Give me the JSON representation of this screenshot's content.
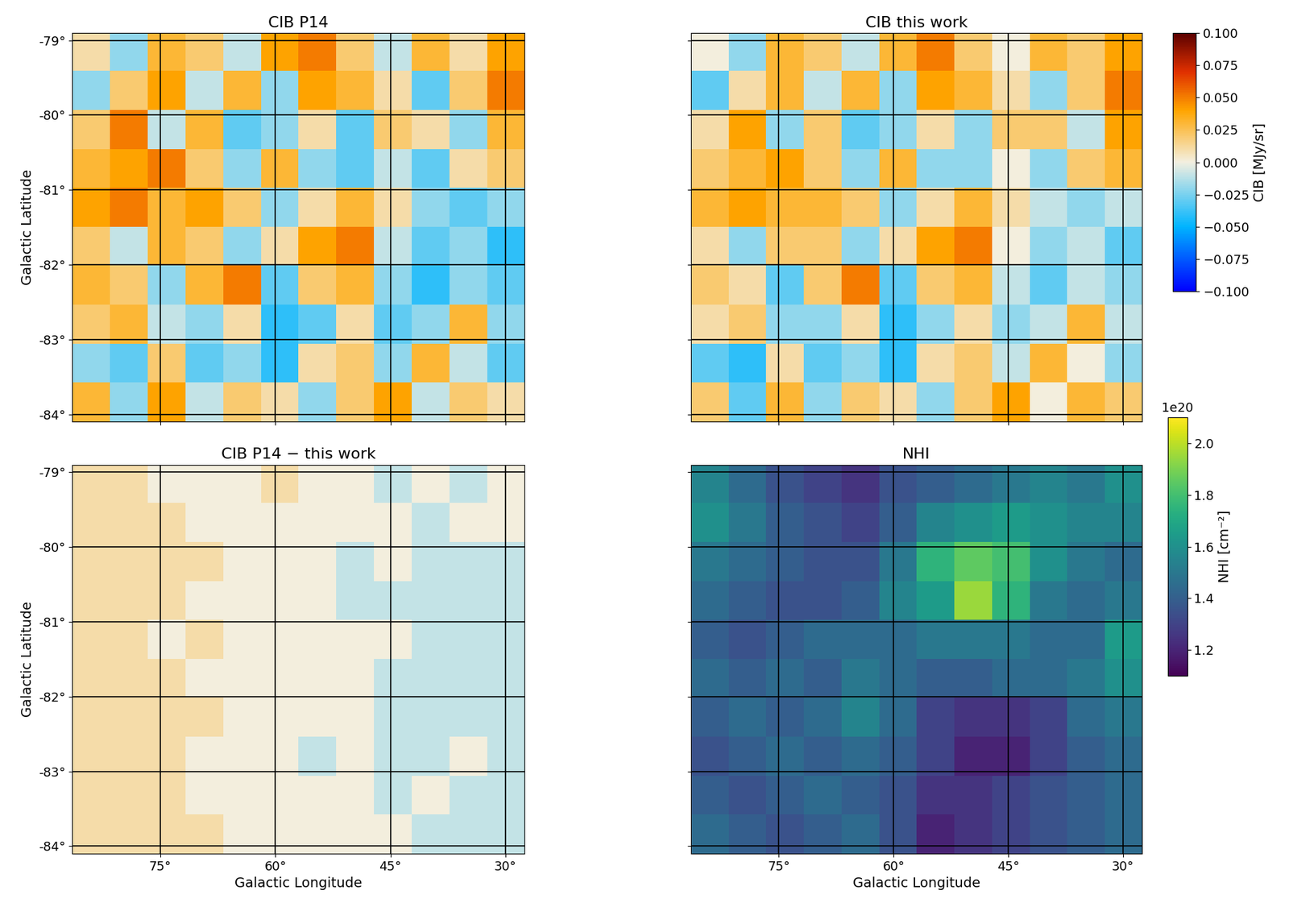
{
  "chart_data": [
    {
      "type": "heatmap",
      "title": "CIB P14",
      "ylabel": "Galactic Latitude",
      "tick_labels": "y",
      "grid": true,
      "xlim": [
        86.5,
        27.5
      ],
      "ylim": [
        -84.1,
        -78.9
      ],
      "xticks": [
        {
          "value": 75,
          "label": "75°"
        },
        {
          "value": 60,
          "label": "60°"
        },
        {
          "value": 45,
          "label": "45°"
        },
        {
          "value": 30,
          "label": "30°"
        }
      ],
      "yticks": [
        {
          "value": -84,
          "label": "-84°"
        },
        {
          "value": -83,
          "label": "-83°"
        },
        {
          "value": -82,
          "label": "-82°"
        },
        {
          "value": -81,
          "label": "-81°"
        },
        {
          "value": -80,
          "label": "-80°"
        },
        {
          "value": -79,
          "label": "-79°"
        }
      ],
      "color_range": [
        -0.1,
        0.1
      ],
      "cells": [
        [
          0.01,
          -0.02,
          0.03,
          0.02,
          -0.01,
          0.04,
          0.05,
          0.02,
          -0.01,
          0.03,
          0.01,
          0.04
        ],
        [
          -0.02,
          0.02,
          0.04,
          -0.01,
          0.03,
          -0.02,
          0.04,
          0.03,
          0.01,
          -0.03,
          0.02,
          0.05
        ],
        [
          0.02,
          0.05,
          -0.01,
          0.03,
          -0.03,
          -0.02,
          0.01,
          -0.03,
          0.02,
          0.01,
          -0.02,
          0.03
        ],
        [
          0.03,
          0.04,
          0.05,
          0.02,
          -0.02,
          0.03,
          -0.02,
          -0.03,
          -0.01,
          -0.03,
          0.01,
          0.02
        ],
        [
          0.04,
          0.05,
          0.03,
          0.04,
          0.02,
          -0.02,
          0.01,
          0.03,
          0.01,
          -0.02,
          -0.03,
          -0.02
        ],
        [
          0.02,
          -0.01,
          0.03,
          0.02,
          -0.02,
          0.01,
          0.04,
          0.05,
          -0.01,
          -0.03,
          -0.02,
          -0.04
        ],
        [
          0.03,
          0.02,
          -0.02,
          0.03,
          0.05,
          -0.03,
          0.02,
          0.03,
          -0.02,
          -0.04,
          -0.02,
          -0.03
        ],
        [
          0.02,
          0.03,
          -0.01,
          -0.02,
          0.01,
          -0.04,
          -0.03,
          0.01,
          -0.03,
          -0.02,
          0.03,
          -0.02
        ],
        [
          -0.02,
          -0.03,
          0.02,
          -0.03,
          -0.02,
          -0.04,
          0.01,
          0.02,
          -0.02,
          0.03,
          -0.01,
          -0.03
        ],
        [
          0.03,
          -0.02,
          0.04,
          -0.01,
          0.02,
          0.01,
          -0.02,
          0.02,
          0.04,
          -0.01,
          0.02,
          0.01
        ]
      ]
    },
    {
      "type": "heatmap",
      "title": "CIB this work",
      "tick_labels": false,
      "grid": true,
      "xlim": [
        86.5,
        27.5
      ],
      "ylim": [
        -84.1,
        -78.9
      ],
      "xticks": [
        {
          "value": 75,
          "label": "75°"
        },
        {
          "value": 60,
          "label": "60°"
        },
        {
          "value": 45,
          "label": "45°"
        },
        {
          "value": 30,
          "label": "30°"
        }
      ],
      "yticks": [
        {
          "value": -84,
          "label": "-84°"
        },
        {
          "value": -83,
          "label": "-83°"
        },
        {
          "value": -82,
          "label": "-82°"
        },
        {
          "value": -81,
          "label": "-81°"
        },
        {
          "value": -80,
          "label": "-80°"
        },
        {
          "value": -79,
          "label": "-79°"
        }
      ],
      "color_range": [
        -0.1,
        0.1
      ],
      "colorbar": {
        "label": "CIB [MJy/sr]",
        "range": [
          -0.1,
          0.1
        ],
        "ticks": [
          {
            "value": -0.1,
            "label": "−0.100"
          },
          {
            "value": -0.075,
            "label": "−0.075"
          },
          {
            "value": -0.05,
            "label": "−0.050"
          },
          {
            "value": -0.025,
            "label": "−0.025"
          },
          {
            "value": 0.0,
            "label": "0.000"
          },
          {
            "value": 0.025,
            "label": "0.025"
          },
          {
            "value": 0.05,
            "label": "0.050"
          },
          {
            "value": 0.075,
            "label": "0.075"
          },
          {
            "value": 0.1,
            "label": "0.100"
          }
        ]
      },
      "cells": [
        [
          0.0,
          -0.02,
          0.03,
          0.02,
          -0.01,
          0.03,
          0.05,
          0.02,
          0.0,
          0.03,
          0.02,
          0.04
        ],
        [
          -0.03,
          0.01,
          0.03,
          -0.01,
          0.03,
          -0.02,
          0.04,
          0.03,
          0.01,
          -0.02,
          0.02,
          0.05
        ],
        [
          0.01,
          0.04,
          -0.02,
          0.02,
          -0.03,
          -0.02,
          0.01,
          -0.02,
          0.02,
          0.02,
          -0.01,
          0.04
        ],
        [
          0.02,
          0.03,
          0.04,
          0.02,
          -0.02,
          0.03,
          -0.02,
          -0.02,
          0.0,
          -0.02,
          0.02,
          0.03
        ],
        [
          0.03,
          0.04,
          0.03,
          0.03,
          0.02,
          -0.02,
          0.01,
          0.03,
          0.01,
          -0.01,
          -0.02,
          -0.01
        ],
        [
          0.01,
          -0.02,
          0.02,
          0.02,
          -0.02,
          0.01,
          0.04,
          0.05,
          0.0,
          -0.02,
          -0.01,
          -0.03
        ],
        [
          0.02,
          0.01,
          -0.03,
          0.02,
          0.05,
          -0.03,
          0.02,
          0.03,
          -0.01,
          -0.03,
          -0.01,
          -0.02
        ],
        [
          0.01,
          0.02,
          -0.02,
          -0.02,
          0.01,
          -0.04,
          -0.02,
          0.01,
          -0.02,
          -0.01,
          0.03,
          -0.01
        ],
        [
          -0.03,
          -0.04,
          0.01,
          -0.03,
          -0.02,
          -0.04,
          0.01,
          0.02,
          -0.01,
          0.03,
          0.0,
          -0.02
        ],
        [
          0.02,
          -0.03,
          0.03,
          -0.02,
          0.02,
          0.01,
          -0.02,
          0.02,
          0.04,
          0.0,
          0.03,
          0.02
        ]
      ]
    },
    {
      "type": "heatmap",
      "title": "CIB P14 − this work",
      "xlabel": "Galactic Longitude",
      "ylabel": "Galactic Latitude",
      "grid": true,
      "xlim": [
        86.5,
        27.5
      ],
      "ylim": [
        -84.1,
        -78.9
      ],
      "xticks": [
        {
          "value": 75,
          "label": "75°"
        },
        {
          "value": 60,
          "label": "60°"
        },
        {
          "value": 45,
          "label": "45°"
        },
        {
          "value": 30,
          "label": "30°"
        }
      ],
      "yticks": [
        {
          "value": -84,
          "label": "-84°"
        },
        {
          "value": -83,
          "label": "-83°"
        },
        {
          "value": -82,
          "label": "-82°"
        },
        {
          "value": -81,
          "label": "-81°"
        },
        {
          "value": -80,
          "label": "-80°"
        },
        {
          "value": -79,
          "label": "-79°"
        }
      ],
      "color_range": [
        -0.1,
        0.1
      ],
      "cells": [
        [
          0.01,
          0.01,
          0.0,
          0.0,
          0.0,
          0.01,
          0.0,
          0.0,
          -0.01,
          0.0,
          -0.01,
          0.0
        ],
        [
          0.01,
          0.01,
          0.01,
          0.0,
          0.0,
          0.0,
          0.0,
          0.0,
          0.0,
          -0.01,
          0.0,
          0.0
        ],
        [
          0.01,
          0.01,
          0.01,
          0.01,
          0.0,
          0.0,
          0.0,
          -0.01,
          0.0,
          -0.01,
          -0.01,
          -0.01
        ],
        [
          0.01,
          0.01,
          0.01,
          0.0,
          0.0,
          0.0,
          0.0,
          -0.01,
          -0.01,
          -0.01,
          -0.01,
          -0.01
        ],
        [
          0.01,
          0.01,
          0.0,
          0.01,
          0.0,
          0.0,
          0.0,
          0.0,
          0.0,
          -0.01,
          -0.01,
          -0.01
        ],
        [
          0.01,
          0.01,
          0.01,
          0.0,
          0.0,
          0.0,
          0.0,
          0.0,
          -0.01,
          -0.01,
          -0.01,
          -0.01
        ],
        [
          0.01,
          0.01,
          0.01,
          0.01,
          0.0,
          0.0,
          0.0,
          0.0,
          -0.01,
          -0.01,
          -0.01,
          -0.01
        ],
        [
          0.01,
          0.01,
          0.01,
          0.0,
          0.0,
          0.0,
          -0.01,
          0.0,
          -0.01,
          -0.01,
          0.0,
          -0.01
        ],
        [
          0.01,
          0.01,
          0.01,
          0.0,
          0.0,
          0.0,
          0.0,
          0.0,
          -0.01,
          0.0,
          -0.01,
          -0.01
        ],
        [
          0.01,
          0.01,
          0.01,
          0.01,
          0.0,
          0.0,
          0.0,
          0.0,
          0.0,
          -0.01,
          -0.01,
          -0.01
        ]
      ]
    },
    {
      "type": "heatmap",
      "title": "NHI",
      "xlabel": "Galactic Longitude",
      "tick_labels": "x",
      "grid": true,
      "xlim": [
        86.5,
        27.5
      ],
      "ylim": [
        -84.1,
        -78.9
      ],
      "xticks": [
        {
          "value": 75,
          "label": "75°"
        },
        {
          "value": 60,
          "label": "60°"
        },
        {
          "value": 45,
          "label": "45°"
        },
        {
          "value": 30,
          "label": "30°"
        }
      ],
      "yticks": [
        {
          "value": -84,
          "label": "-84°"
        },
        {
          "value": -83,
          "label": "-83°"
        },
        {
          "value": -82,
          "label": "-82°"
        },
        {
          "value": -81,
          "label": "-81°"
        },
        {
          "value": -80,
          "label": "-80°"
        },
        {
          "value": -79,
          "label": "-79°"
        }
      ],
      "color_range": [
        1.1,
        2.1
      ],
      "colorbar": {
        "label": "NHI [cm⁻²]",
        "offset_label": "1e20",
        "range": [
          1.1,
          2.1
        ],
        "ticks": [
          1.2,
          1.4,
          1.6,
          1.8,
          2.0
        ]
      },
      "cells": [
        [
          1.55,
          1.45,
          1.35,
          1.3,
          1.25,
          1.35,
          1.4,
          1.45,
          1.5,
          1.55,
          1.5,
          1.6
        ],
        [
          1.6,
          1.5,
          1.4,
          1.35,
          1.3,
          1.4,
          1.55,
          1.6,
          1.65,
          1.6,
          1.55,
          1.55
        ],
        [
          1.5,
          1.45,
          1.4,
          1.35,
          1.35,
          1.5,
          1.75,
          1.85,
          1.8,
          1.6,
          1.5,
          1.45
        ],
        [
          1.45,
          1.4,
          1.35,
          1.35,
          1.4,
          1.55,
          1.65,
          1.95,
          1.75,
          1.5,
          1.45,
          1.5
        ],
        [
          1.4,
          1.35,
          1.4,
          1.45,
          1.45,
          1.45,
          1.5,
          1.5,
          1.5,
          1.45,
          1.45,
          1.65
        ],
        [
          1.45,
          1.4,
          1.45,
          1.4,
          1.5,
          1.45,
          1.4,
          1.4,
          1.45,
          1.45,
          1.5,
          1.6
        ],
        [
          1.4,
          1.45,
          1.4,
          1.45,
          1.55,
          1.45,
          1.3,
          1.25,
          1.25,
          1.3,
          1.45,
          1.5
        ],
        [
          1.35,
          1.4,
          1.45,
          1.4,
          1.45,
          1.4,
          1.3,
          1.2,
          1.2,
          1.3,
          1.4,
          1.45
        ],
        [
          1.4,
          1.35,
          1.4,
          1.45,
          1.4,
          1.35,
          1.25,
          1.25,
          1.3,
          1.35,
          1.4,
          1.45
        ],
        [
          1.45,
          1.4,
          1.35,
          1.4,
          1.45,
          1.35,
          1.2,
          1.25,
          1.3,
          1.35,
          1.4,
          1.45
        ]
      ]
    }
  ]
}
